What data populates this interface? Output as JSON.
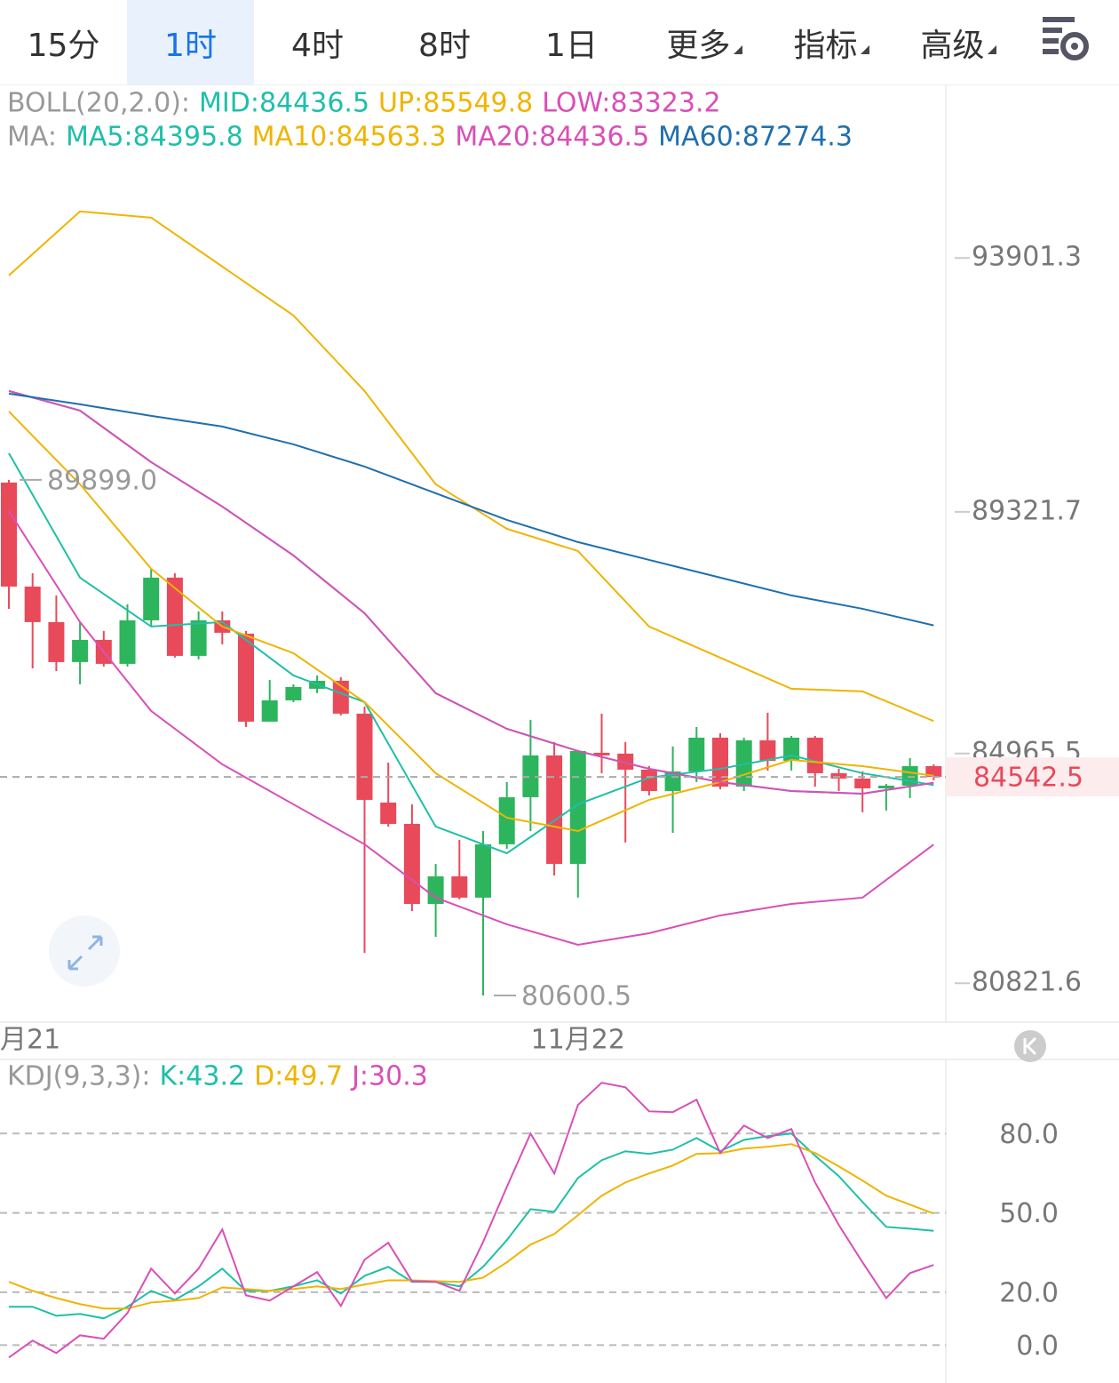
{
  "tabs": [
    {
      "label": "15分"
    },
    {
      "label": "1时",
      "active": true
    },
    {
      "label": "4时"
    },
    {
      "label": "8时"
    },
    {
      "label": "1日"
    },
    {
      "label": "更多",
      "dropdown": true
    },
    {
      "label": "指标",
      "dropdown": true
    },
    {
      "label": "高级",
      "dropdown": true
    }
  ],
  "chart_data": [
    {
      "type": "candlestick",
      "categories": [
        "月21",
        null,
        null,
        null,
        null,
        null,
        null,
        null,
        null,
        null,
        null,
        null,
        null,
        null,
        null,
        null,
        null,
        null,
        null,
        null,
        null,
        null,
        null,
        null,
        "11月22",
        null,
        null,
        null,
        null,
        null,
        null,
        null,
        null,
        null,
        null,
        null,
        null,
        null,
        null,
        null
      ],
      "open": [
        89851,
        87975,
        87334,
        86613,
        87013,
        86581,
        87366,
        88136,
        86725,
        87366,
        87126,
        85539,
        85923,
        86132,
        86276,
        85683,
        84080,
        83695,
        82252,
        82749,
        82365,
        83327,
        84176,
        84930,
        82974,
        84978,
        84962,
        84673,
        84288,
        84641,
        85250,
        84368,
        85202,
        84833,
        85250,
        84609,
        84513,
        84336,
        84385,
        84737
      ],
      "close": [
        87975,
        87334,
        86613,
        87013,
        86581,
        87366,
        88136,
        86725,
        87366,
        87142,
        85539,
        85923,
        86164,
        86276,
        85683,
        84128,
        83695,
        82252,
        82749,
        82365,
        83327,
        84176,
        84930,
        82974,
        85010,
        84930,
        84673,
        84288,
        84641,
        85250,
        84368,
        85202,
        84833,
        85250,
        84609,
        84513,
        84336,
        84385,
        84737,
        84542.5
      ],
      "high": [
        89899,
        88216,
        87815,
        87334,
        87174,
        87655,
        88296,
        88216,
        87526,
        87526,
        87174,
        86292,
        86212,
        86372,
        86340,
        85811,
        84801,
        84048,
        82974,
        83407,
        83567,
        84449,
        85571,
        85170,
        85010,
        85683,
        85170,
        84737,
        85090,
        85442,
        85330,
        85250,
        85699,
        85282,
        85282,
        84689,
        84641,
        84417,
        84881,
        84769
      ],
      "low": [
        87574,
        86500,
        86452,
        86212,
        86533,
        86533,
        87254,
        86693,
        86661,
        86933,
        85442,
        85539,
        85891,
        86052,
        85651,
        81371,
        83647,
        82124,
        81659,
        82333,
        80600.5,
        83246,
        83567,
        82765,
        82365,
        84609,
        83359,
        84208,
        83535,
        84449,
        84320,
        84288,
        84657,
        84657,
        84368,
        84288,
        83904,
        83936,
        84160,
        84481
      ],
      "up_color": "#2db55d",
      "down_color": "#e84a5a",
      "ylim": [
        80120,
        97030
      ],
      "yticks": [
        93901.3,
        89321.7,
        84965.5,
        80821.6
      ],
      "last_price": {
        "value": 84542.5,
        "color": "#e84a5a"
      },
      "annotations": [
        {
          "label": "89899.0",
          "value": 89899,
          "x": 0
        },
        {
          "label": "80600.5",
          "value": 80600.5,
          "x": 20
        }
      ],
      "legend_groups": [
        {
          "label": "BOLL(20,2.0):",
          "series": [
            {
              "name": "MID:84436.5",
              "color": "#1fbfa8",
              "x": [
                0,
                3,
                6,
                9,
                12,
                15,
                18,
                21,
                24,
                27,
                30,
                33,
                36,
                39
              ],
              "values": [
                91502,
                91149,
                90219,
                89418,
                88536,
                87494,
                86052,
                85410,
                85010,
                84689,
                84449,
                84288,
                84240,
                84436.5
              ]
            },
            {
              "name": "UP:85549.8",
              "color": "#f0b400",
              "x": [
                0,
                3,
                6,
                9,
                12,
                15,
                18,
                21,
                24,
                27,
                30,
                33,
                36,
                39
              ],
              "values": [
                93586,
                94740,
                94628,
                93746,
                92864,
                91502,
                89819,
                89017,
                88616,
                87254,
                86693,
                86132,
                86084,
                85549.8
              ]
            },
            {
              "name": "LOW:83323.2",
              "color": "#d94fb8",
              "x": [
                0,
                3,
                6,
                9,
                12,
                15,
                18,
                21,
                24,
                27,
                30,
                33,
                36,
                39
              ],
              "values": [
                89338,
                87334,
                85731,
                84769,
                84048,
                83327,
                82365,
                81884,
                81515,
                81723,
                82044,
                82252,
                82365,
                83323.2
              ]
            }
          ]
        },
        {
          "label": "MA:",
          "series": [
            {
              "name": "MA5:84395.8",
              "color": "#1fbfa8",
              "x": [
                0,
                3,
                6,
                9,
                12,
                15,
                18,
                21,
                24,
                27,
                30,
                33,
                36,
                39
              ],
              "values": [
                90380,
                88136,
                87254,
                87334,
                86372,
                85891,
                83647,
                83166,
                84048,
                84529,
                84689,
                84930,
                84609,
                84395.8
              ]
            },
            {
              "name": "MA10:84563.3",
              "color": "#f0b400",
              "x": [
                0,
                3,
                6,
                9,
                12,
                15,
                18,
                21,
                24,
                27,
                30,
                33,
                36,
                39
              ],
              "values": [
                91133,
                89819,
                88296,
                87254,
                86773,
                85891,
                84609,
                83807,
                83567,
                84128,
                84449,
                84849,
                84737,
                84563.3
              ]
            },
            {
              "name": "MA20:84436.5",
              "color": "#d94fb8",
              "x": [
                0,
                3,
                6,
                9,
                12,
                15,
                18,
                21,
                24,
                27,
                30,
                33,
                36,
                39
              ],
              "values": [
                91502,
                91149,
                90219,
                89418,
                88536,
                87494,
                86052,
                85410,
                85010,
                84689,
                84449,
                84288,
                84240,
                84436.5
              ]
            },
            {
              "name": "MA60:87274.3",
              "color": "#1f6fae",
              "x": [
                0,
                3,
                6,
                9,
                12,
                15,
                18,
                21,
                24,
                27,
                30,
                33,
                36,
                39
              ],
              "values": [
                91454,
                91261,
                91053,
                90861,
                90540,
                90139,
                89658,
                89177,
                88777,
                88456,
                88136,
                87815,
                87574,
                87274.3
              ]
            }
          ]
        }
      ]
    },
    {
      "type": "line",
      "label": "KDJ(9,3,3):",
      "ylim": [
        -14,
        108
      ],
      "yticks": [
        {
          "value": 0,
          "label": "0.0"
        },
        {
          "value": 20,
          "label": "20.0"
        },
        {
          "value": 50,
          "label": "50.0"
        },
        {
          "value": 80,
          "label": "80.0"
        }
      ],
      "grid": true,
      "series": [
        {
          "name": "K:43.2",
          "color": "#1fbfa8",
          "values": [
            14.5,
            14.5,
            11.1,
            11.8,
            10.1,
            14.5,
            20.5,
            17.1,
            22.2,
            28.9,
            20.5,
            20.5,
            22.2,
            24.5,
            19.5,
            26.2,
            29.6,
            23.9,
            23.9,
            22.2,
            29.6,
            39.7,
            51.4,
            50.4,
            63.2,
            69.9,
            73.3,
            72.3,
            73.9,
            78.3,
            73.3,
            77.6,
            79.0,
            80.0,
            71.6,
            63.9,
            54.1,
            44.7,
            44.0,
            43.2
          ]
        },
        {
          "name": "D:49.7",
          "color": "#f0b400",
          "values": [
            23.9,
            20.5,
            17.8,
            15.5,
            13.8,
            13.8,
            16.1,
            16.8,
            17.8,
            21.8,
            21.2,
            20.5,
            21.2,
            22.2,
            21.2,
            22.9,
            24.5,
            24.5,
            24.2,
            23.9,
            25.5,
            31.3,
            38.0,
            42.0,
            49.1,
            56.5,
            61.5,
            64.9,
            67.9,
            72.3,
            72.6,
            74.3,
            75.0,
            76.0,
            72.6,
            67.6,
            62.2,
            56.5,
            53.1,
            49.7
          ]
        },
        {
          "name": "J:30.3",
          "color": "#d94fb8",
          "values": [
            -4.7,
            1.7,
            -3.0,
            3.7,
            2.4,
            12.1,
            28.9,
            19.5,
            28.9,
            43.7,
            18.8,
            16.8,
            22.2,
            27.6,
            14.8,
            32.3,
            38.7,
            24.2,
            23.9,
            20.5,
            39.0,
            59.8,
            80.0,
            64.9,
            90.8,
            99.2,
            97.5,
            88.4,
            88.1,
            92.8,
            72.6,
            83.0,
            78.3,
            81.7,
            61.5,
            45.4,
            31.3,
            17.8,
            27.2,
            30.3
          ]
        }
      ]
    }
  ]
}
